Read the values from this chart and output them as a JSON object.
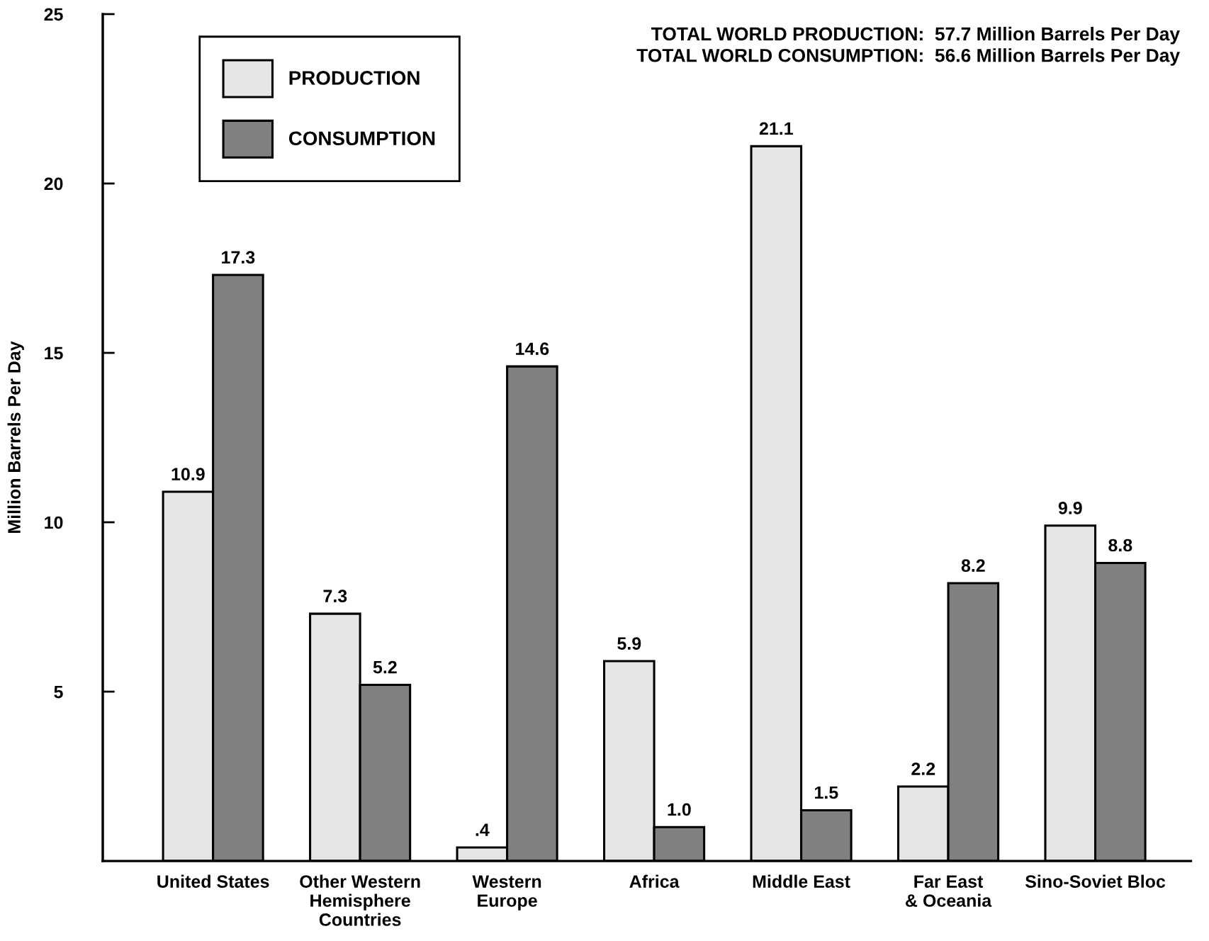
{
  "chart_data": {
    "type": "bar",
    "ylabel": "Million Barrels Per Day",
    "categories": [
      "United States",
      "Other Western\nHemisphere\nCountries",
      "Western\nEurope",
      "Africa",
      "Middle East",
      "Far East\n& Oceania",
      "Sino-Soviet Bloc"
    ],
    "series": [
      {
        "name": "PRODUCTION",
        "color": "#e6e6e6",
        "values": [
          10.9,
          7.3,
          0.4,
          5.9,
          21.1,
          2.2,
          9.9
        ],
        "value_labels": [
          "10.9",
          "7.3",
          ".4",
          "5.9",
          "21.1",
          "2.2",
          "9.9"
        ]
      },
      {
        "name": "CONSUMPTION",
        "color": "#808080",
        "values": [
          17.3,
          5.2,
          14.6,
          1.0,
          1.5,
          8.2,
          8.8
        ],
        "value_labels": [
          "17.3",
          "5.2",
          "14.6",
          "1.0",
          "1.5",
          "8.2",
          "8.8"
        ]
      }
    ],
    "ylim": [
      0,
      25
    ],
    "yticks": [
      5,
      10,
      15,
      20,
      25
    ],
    "grid": false,
    "legend": "top left",
    "annotations": [
      "TOTAL WORLD PRODUCTION:  57.7 Million Barrels Per Day\nTOTAL WORLD CONSUMPTION:  56.6 Million Barrels Per Day"
    ]
  }
}
